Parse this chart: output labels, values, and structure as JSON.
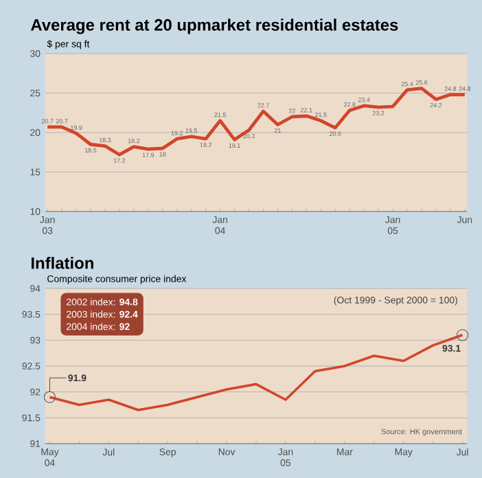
{
  "chart_data": [
    {
      "type": "line",
      "title": "Average rent at 20 upmarket residential estates",
      "ylabel": "$ per sq ft",
      "categories": [
        "Jan 03",
        null,
        null,
        null,
        null,
        null,
        null,
        null,
        null,
        null,
        null,
        null,
        "Jan 04",
        null,
        null,
        null,
        null,
        null,
        null,
        null,
        null,
        null,
        null,
        null,
        "Jan 05",
        null,
        null,
        null,
        null,
        "Jun"
      ],
      "series": [
        {
          "color": "#d2452b",
          "values": [
            20.7,
            20.7,
            19.9,
            18.5,
            18.3,
            17.2,
            18.2,
            17.9,
            18,
            19.2,
            19.5,
            19.2,
            21.5,
            19.1,
            20.3,
            22.7,
            21,
            22,
            22.1,
            21.5,
            20.6,
            22.8,
            23.4,
            23.2,
            23.3,
            25.4,
            25.6,
            24.2,
            24.8,
            24.8
          ],
          "value_labels": [
            "20.7",
            "20.7",
            "19.9",
            "18.5",
            "18.3",
            "17.2",
            "18.2",
            "17.9",
            "18",
            "19.2",
            "19.5",
            "19.2",
            "21.5",
            "19.1",
            "20.3",
            "22.7",
            "21",
            "22",
            "22.1",
            "21.5",
            "20.6",
            "22.8",
            "23.4",
            "23.2",
            null,
            "25.4",
            "25.6",
            "24.2",
            "24.8",
            "24.8"
          ]
        }
      ],
      "ylim": [
        10,
        30
      ],
      "yticks": [
        10,
        15,
        20,
        25,
        30
      ],
      "grid": "y"
    },
    {
      "type": "line",
      "title": "Inflation",
      "ylabel": "Composite consumer price index",
      "categories": [
        "May 04",
        null,
        "Jul",
        null,
        "Sep",
        null,
        "Nov",
        null,
        "Jan 05",
        null,
        "Mar",
        null,
        "May",
        null,
        "Jul"
      ],
      "series": [
        {
          "color": "#d2452b",
          "values": [
            91.9,
            91.75,
            91.85,
            91.65,
            91.75,
            91.9,
            92.05,
            92.15,
            91.85,
            92.4,
            92.5,
            92.7,
            92.6,
            92.9,
            93.1
          ],
          "value_labels": [
            "91.9",
            null,
            null,
            null,
            null,
            null,
            null,
            null,
            null,
            null,
            null,
            null,
            null,
            null,
            "93.1"
          ]
        }
      ],
      "ylim": [
        91,
        94
      ],
      "yticks": [
        91,
        91.5,
        92,
        92.5,
        93,
        93.5,
        94
      ],
      "grid": "y",
      "annotations": [
        "2002 index: **94.8**",
        "2003 index: **92.4**",
        "2004 index: **92**",
        "(Oct 1999 - Sept 2000 = 100)",
        "Source: HK government"
      ]
    }
  ]
}
